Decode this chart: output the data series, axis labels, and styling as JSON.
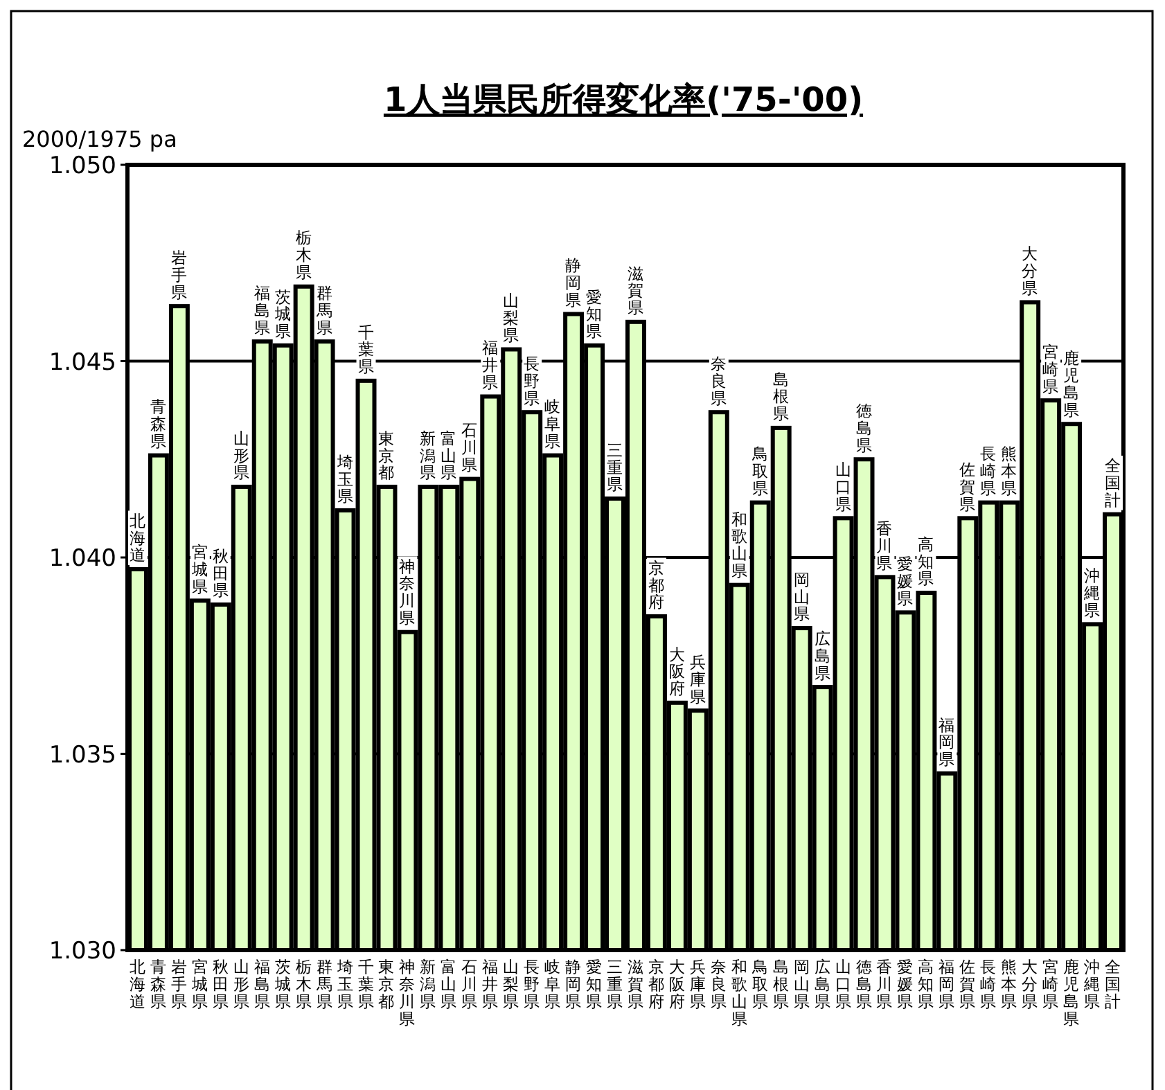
{
  "chart_data": {
    "type": "bar",
    "title": "1人当県民所得変化率('75-'00)",
    "ylabel": "2000/1975 pa",
    "categories": [
      "北海道",
      "青森県",
      "岩手県",
      "宮城県",
      "秋田県",
      "山形県",
      "福島県",
      "茨城県",
      "栃木県",
      "群馬県",
      "埼玉県",
      "千葉県",
      "東京都",
      "神奈川県",
      "新潟県",
      "富山県",
      "石川県",
      "福井県",
      "山梨県",
      "長野県",
      "岐阜県",
      "静岡県",
      "愛知県",
      "三重県",
      "滋賀県",
      "京都府",
      "大阪府",
      "兵庫県",
      "奈良県",
      "和歌山県",
      "鳥取県",
      "島根県",
      "岡山県",
      "広島県",
      "山口県",
      "徳島県",
      "香川県",
      "愛媛県",
      "高知県",
      "福岡県",
      "佐賀県",
      "長崎県",
      "熊本県",
      "大分県",
      "宮崎県",
      "鹿児島県",
      "沖縄県",
      "全国計"
    ],
    "values": [
      1.0397,
      1.0426,
      1.0464,
      1.0389,
      1.0388,
      1.0418,
      1.0455,
      1.0454,
      1.0469,
      1.0455,
      1.0412,
      1.0445,
      1.0418,
      1.0381,
      1.0418,
      1.0418,
      1.042,
      1.0441,
      1.0453,
      1.0437,
      1.0426,
      1.0462,
      1.0454,
      1.0415,
      1.046,
      1.0385,
      1.0363,
      1.0361,
      1.0437,
      1.0393,
      1.0414,
      1.0433,
      1.0382,
      1.0367,
      1.041,
      1.0425,
      1.0395,
      1.0386,
      1.0391,
      1.0345,
      1.041,
      1.0414,
      1.0414,
      1.0465,
      1.044,
      1.0434,
      1.0383,
      1.0411
    ],
    "value_labels": [
      "北海道",
      "青森県",
      "岩手県",
      "宮城県",
      "秋田県",
      "山形県",
      "福島県",
      "茨城県",
      "栃木県",
      "群馬県",
      "埼玉県",
      "千葉県",
      "東京都",
      "神奈川県",
      "新潟県",
      "富山県",
      "石川県",
      "福井県",
      "山梨県",
      "長野県",
      "岐阜県",
      "静岡県",
      "愛知県",
      "三重県",
      "滋賀県",
      "京都府",
      "大阪府",
      "兵庫県",
      "奈良県",
      "和歌山県",
      "鳥取県",
      "島根県",
      "岡山県",
      "広島県",
      "山口県",
      "徳島県",
      "香川県",
      "愛媛県",
      "高知県",
      "福岡県",
      "佐賀県",
      "長崎県",
      "熊本県",
      "大分県",
      "宮崎県",
      "鹿児島県",
      "沖縄県",
      "全国計"
    ],
    "color": "#e0ffc4",
    "ylim": [
      1.03,
      1.05
    ],
    "yticks": [
      {
        "value": 1.03,
        "label": "1.030"
      },
      {
        "value": 1.035,
        "label": "1.035"
      },
      {
        "value": 1.04,
        "label": "1.040"
      },
      {
        "value": 1.045,
        "label": "1.045"
      },
      {
        "value": 1.05,
        "label": "1.050"
      }
    ],
    "grid": "y"
  }
}
